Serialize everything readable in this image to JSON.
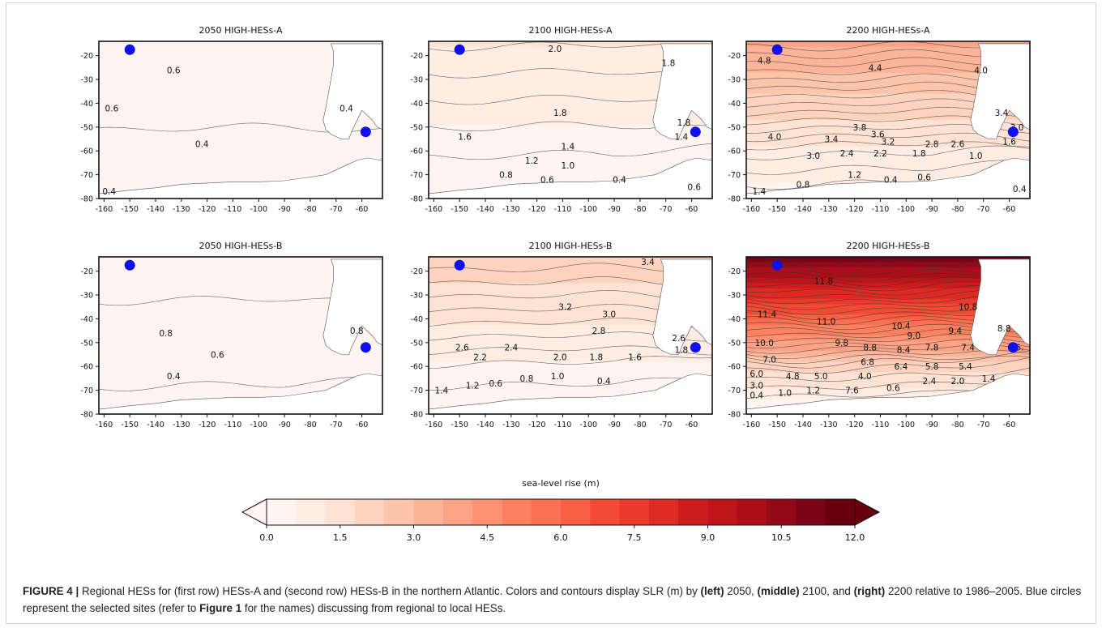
{
  "chart_data": {
    "type": "heatmap",
    "x_ticks": [
      -160,
      -150,
      -140,
      -130,
      -120,
      -110,
      -100,
      -90,
      -80,
      -70,
      -60
    ],
    "y_ticks": [
      -20,
      -30,
      -40,
      -50,
      -60,
      -70,
      -80
    ],
    "xlim": [
      -162,
      -52
    ],
    "ylim": [
      -80,
      -14
    ],
    "colorbar": {
      "label": "sea-level rise (m)",
      "min": 0.0,
      "max": 12.0,
      "tick_values": [
        0.0,
        1.5,
        3.0,
        4.5,
        6.0,
        7.5,
        9.0,
        10.5,
        12.0
      ],
      "tick_labels": [
        "0.0",
        "1.5",
        "3.0",
        "4.5",
        "6.0",
        "7.5",
        "9.0",
        "10.5",
        "12.0"
      ],
      "extend": "both",
      "colors": [
        "#fff5f0",
        "#ffece2",
        "#fee2d3",
        "#fdd3c0",
        "#fcc4ab",
        "#fcb499",
        "#fca387",
        "#fc9272",
        "#fb8161",
        "#fa7052",
        "#f85f43",
        "#f14b36",
        "#e93a2c",
        "#de2a25",
        "#cd1c1e",
        "#bd151a",
        "#ac0f18",
        "#93091a",
        "#7a0414",
        "#67000d"
      ]
    },
    "sites": [
      {
        "lon": -150,
        "lat": -17.5
      },
      {
        "lon": -58.5,
        "lat": -52
      }
    ],
    "panels": [
      {
        "title": "2050 HIGH-HESs-A",
        "north": 0.3,
        "south": 0.15,
        "labels": [
          {
            "lon": -133,
            "lat": -26,
            "v": "0.6"
          },
          {
            "lon": -157,
            "lat": -42,
            "v": "0.6"
          },
          {
            "lon": -122,
            "lat": -57,
            "v": "0.4"
          },
          {
            "lon": -158,
            "lat": -77,
            "v": "0.4"
          },
          {
            "lon": -66,
            "lat": -42,
            "v": "0.4"
          }
        ]
      },
      {
        "title": "2100 HIGH-HESs-A",
        "north": 1.2,
        "south": 0.28,
        "labels": [
          {
            "lon": -113,
            "lat": -17,
            "v": "2.0"
          },
          {
            "lon": -69,
            "lat": -23,
            "v": "1.8"
          },
          {
            "lon": -111,
            "lat": -44,
            "v": "1.8"
          },
          {
            "lon": -148,
            "lat": -54,
            "v": "1.6"
          },
          {
            "lon": -108,
            "lat": -58,
            "v": "1.4"
          },
          {
            "lon": -122,
            "lat": -64,
            "v": "1.2"
          },
          {
            "lon": -108,
            "lat": -66,
            "v": "1.0"
          },
          {
            "lon": -132,
            "lat": -70,
            "v": "0.8"
          },
          {
            "lon": -116,
            "lat": -72,
            "v": "0.6"
          },
          {
            "lon": -88,
            "lat": -72,
            "v": "0.4"
          },
          {
            "lon": -63,
            "lat": -48,
            "v": "1.8"
          },
          {
            "lon": -64,
            "lat": -54,
            "v": "1.4"
          },
          {
            "lon": -59,
            "lat": -75,
            "v": "0.6"
          }
        ]
      },
      {
        "title": "2200 HIGH-HESs-A",
        "north": 3.6,
        "south": 0.6,
        "labels": [
          {
            "lon": -155,
            "lat": -22,
            "v": "4.8"
          },
          {
            "lon": -112,
            "lat": -25,
            "v": "4.4"
          },
          {
            "lon": -71,
            "lat": -26,
            "v": "4.0"
          },
          {
            "lon": -151,
            "lat": -54,
            "v": "4.0"
          },
          {
            "lon": -118,
            "lat": -50,
            "v": "3.8"
          },
          {
            "lon": -129,
            "lat": -55,
            "v": "3.4"
          },
          {
            "lon": -111,
            "lat": -53,
            "v": "3.6"
          },
          {
            "lon": -107,
            "lat": -56,
            "v": "3.2"
          },
          {
            "lon": -136,
            "lat": -62,
            "v": "3.0"
          },
          {
            "lon": -123,
            "lat": -61,
            "v": "2.4"
          },
          {
            "lon": -110,
            "lat": -61,
            "v": "2.2"
          },
          {
            "lon": -95,
            "lat": -61,
            "v": "1.8"
          },
          {
            "lon": -90,
            "lat": -57,
            "v": "2.8"
          },
          {
            "lon": -80,
            "lat": -57,
            "v": "2.6"
          },
          {
            "lon": -120,
            "lat": -70,
            "v": "1.2"
          },
          {
            "lon": -106,
            "lat": -72,
            "v": "0.4"
          },
          {
            "lon": -93,
            "lat": -71,
            "v": "0.6"
          },
          {
            "lon": -140,
            "lat": -74,
            "v": "0.8"
          },
          {
            "lon": -157,
            "lat": -77,
            "v": "1.4"
          },
          {
            "lon": -73,
            "lat": -62,
            "v": "1.0"
          },
          {
            "lon": -63,
            "lat": -44,
            "v": "3.4"
          },
          {
            "lon": -57,
            "lat": -50,
            "v": "3.0"
          },
          {
            "lon": -60,
            "lat": -56,
            "v": "1.6"
          },
          {
            "lon": -56,
            "lat": -76,
            "v": "0.4"
          }
        ]
      },
      {
        "title": "2050 HIGH-HESs-B",
        "north": 0.5,
        "south": 0.18,
        "labels": [
          {
            "lon": -136,
            "lat": -46,
            "v": "0.8"
          },
          {
            "lon": -116,
            "lat": -55,
            "v": "0.6"
          },
          {
            "lon": -133,
            "lat": -64,
            "v": "0.4"
          },
          {
            "lon": -62,
            "lat": -45,
            "v": "0.8"
          }
        ]
      },
      {
        "title": "2100 HIGH-HESs-B",
        "north": 2.1,
        "south": 0.28,
        "labels": [
          {
            "lon": -77,
            "lat": -16,
            "v": "3.4"
          },
          {
            "lon": -109,
            "lat": -35,
            "v": "3.2"
          },
          {
            "lon": -92,
            "lat": -38,
            "v": "3.0"
          },
          {
            "lon": -96,
            "lat": -45,
            "v": "2.8"
          },
          {
            "lon": -149,
            "lat": -52,
            "v": "2.6"
          },
          {
            "lon": -130,
            "lat": -52,
            "v": "2.4"
          },
          {
            "lon": -142,
            "lat": -56,
            "v": "2.2"
          },
          {
            "lon": -111,
            "lat": -56,
            "v": "2.0"
          },
          {
            "lon": -97,
            "lat": -56,
            "v": "1.8"
          },
          {
            "lon": -82,
            "lat": -56,
            "v": "1.6"
          },
          {
            "lon": -157,
            "lat": -70,
            "v": "1.4"
          },
          {
            "lon": -145,
            "lat": -68,
            "v": "1.2"
          },
          {
            "lon": -136,
            "lat": -67,
            "v": "0.6"
          },
          {
            "lon": -124,
            "lat": -65,
            "v": "0.8"
          },
          {
            "lon": -112,
            "lat": -64,
            "v": "1.0"
          },
          {
            "lon": -94,
            "lat": -66,
            "v": "0.4"
          },
          {
            "lon": -65,
            "lat": -48,
            "v": "2.6"
          },
          {
            "lon": -64,
            "lat": -53,
            "v": "1.8"
          }
        ]
      },
      {
        "title": "2200 HIGH-HESs-B",
        "north": 10.8,
        "south": 0.6,
        "labels": [
          {
            "lon": -132,
            "lat": -24,
            "v": "11.8"
          },
          {
            "lon": -76,
            "lat": -35,
            "v": "10.8"
          },
          {
            "lon": -154,
            "lat": -38,
            "v": "11.4"
          },
          {
            "lon": -131,
            "lat": -41,
            "v": "11.0"
          },
          {
            "lon": -102,
            "lat": -43,
            "v": "10.4"
          },
          {
            "lon": -155,
            "lat": -50,
            "v": "10.0"
          },
          {
            "lon": -125,
            "lat": -50,
            "v": "9.8"
          },
          {
            "lon": -97,
            "lat": -47,
            "v": "9.0"
          },
          {
            "lon": -81,
            "lat": -45,
            "v": "9.4"
          },
          {
            "lon": -114,
            "lat": -52,
            "v": "8.8"
          },
          {
            "lon": -101,
            "lat": -53,
            "v": "8.4"
          },
          {
            "lon": -90,
            "lat": -52,
            "v": "7.8"
          },
          {
            "lon": -76,
            "lat": -52,
            "v": "7.4"
          },
          {
            "lon": -153,
            "lat": -57,
            "v": "7.0"
          },
          {
            "lon": -115,
            "lat": -58,
            "v": "6.8"
          },
          {
            "lon": -102,
            "lat": -60,
            "v": "6.4"
          },
          {
            "lon": -90,
            "lat": -60,
            "v": "5.8"
          },
          {
            "lon": -77,
            "lat": -60,
            "v": "5.4"
          },
          {
            "lon": -158,
            "lat": -63,
            "v": "6.0"
          },
          {
            "lon": -144,
            "lat": -64,
            "v": "4.8"
          },
          {
            "lon": -133,
            "lat": -64,
            "v": "5.0"
          },
          {
            "lon": -116,
            "lat": -64,
            "v": "4.0"
          },
          {
            "lon": -91,
            "lat": -66,
            "v": "2.4"
          },
          {
            "lon": -80,
            "lat": -66,
            "v": "2.0"
          },
          {
            "lon": -68,
            "lat": -65,
            "v": "1.4"
          },
          {
            "lon": -158,
            "lat": -68,
            "v": "3.0"
          },
          {
            "lon": -158,
            "lat": -72,
            "v": "0.4"
          },
          {
            "lon": -147,
            "lat": -71,
            "v": "1.0"
          },
          {
            "lon": -136,
            "lat": -70,
            "v": "1.2"
          },
          {
            "lon": -121,
            "lat": -70,
            "v": "7.6"
          },
          {
            "lon": -105,
            "lat": -69,
            "v": "0.6"
          },
          {
            "lon": -62,
            "lat": -44,
            "v": "8.8"
          },
          {
            "lon": -56,
            "lat": -52,
            "v": "6."
          }
        ]
      }
    ]
  },
  "caption": {
    "label": "FIGURE 4 |",
    "t1": " Regional HESs for (first row) HESs-A and (second row) HESs-B in the northern Atlantic. Colors and contours display SLR (m) by ",
    "b1": "(left)",
    "t2": " 2050, ",
    "b2": "(middle)",
    "t3": " 2100, and ",
    "b3": "(right)",
    "t4": " 2200 relative to 1986–2005. Blue circles represent the selected sites (refer to ",
    "b4": "Figure 1",
    "t5": " for the names) discussing from regional to local HESs."
  }
}
